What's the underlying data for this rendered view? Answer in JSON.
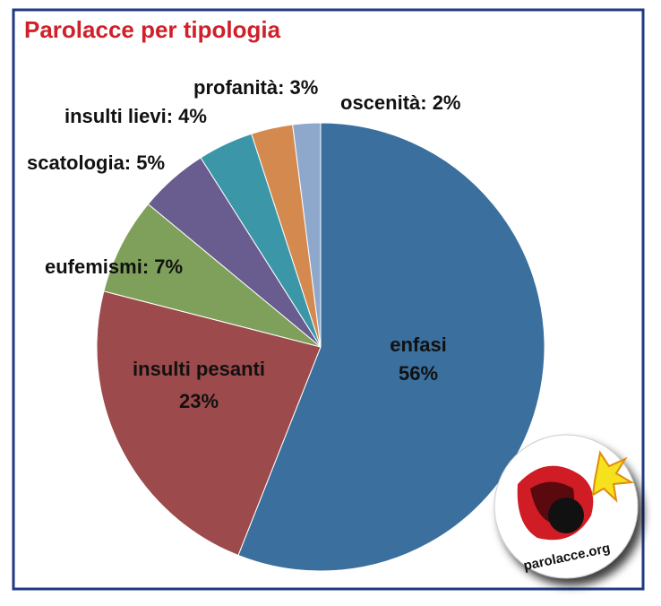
{
  "chart_data": {
    "type": "pie",
    "title": "Parolacce per tipologia",
    "values": [
      56,
      23,
      7,
      5,
      4,
      3,
      2
    ],
    "labels": [
      [
        "enfasi",
        "56%"
      ],
      [
        "insulti pesanti",
        "23%"
      ],
      [
        "eufemismi: 7%"
      ],
      [
        "scatologia: 5%"
      ],
      [
        "insulti lievi: 4%"
      ],
      [
        "profanità: 3%"
      ],
      [
        "oscenità: 2%"
      ]
    ],
    "colors": [
      "#3a6f9e",
      "#9c4a4b",
      "#7fa05a",
      "#695c8f",
      "#3b97a8",
      "#d4894e",
      "#8ea8cc"
    ]
  },
  "logo": {
    "text": "parolacce.org"
  }
}
